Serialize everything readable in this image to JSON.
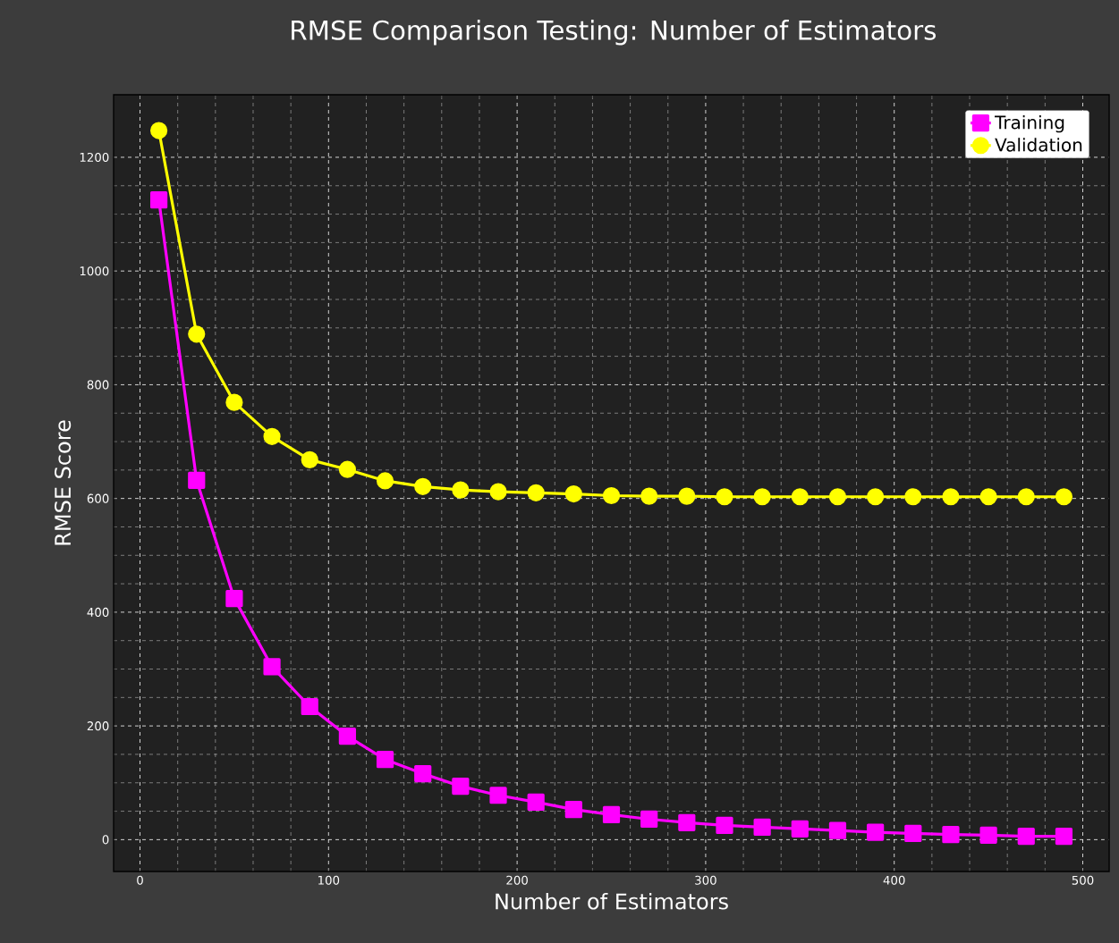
{
  "chart_data": {
    "type": "line",
    "title": "RMSE Comparison Testing: Number of Estimators",
    "xlabel": "Number of Estimators",
    "ylabel": "RMSE Score",
    "x": [
      10,
      30,
      50,
      70,
      90,
      110,
      130,
      150,
      170,
      190,
      210,
      230,
      250,
      270,
      290,
      310,
      330,
      350,
      370,
      390,
      410,
      430,
      450,
      470,
      490
    ],
    "series": [
      {
        "name": "Training",
        "color": "#ff00ff",
        "marker": "square",
        "values": [
          1125,
          632,
          424,
          304,
          234,
          182,
          141,
          116,
          94,
          78,
          66,
          53,
          44,
          36,
          30,
          25,
          22,
          19,
          16,
          13,
          11,
          9,
          8,
          6,
          6
        ]
      },
      {
        "name": "Validation",
        "color": "#ffff00",
        "marker": "circle",
        "values": [
          1247,
          889,
          769,
          709,
          668,
          651,
          631,
          621,
          615,
          612,
          610,
          608,
          605,
          604,
          604,
          603,
          603,
          603,
          603,
          603,
          603,
          603,
          603,
          603,
          603
        ]
      }
    ],
    "xlim": [
      -14,
      514
    ],
    "ylim": [
      -56,
      1310
    ],
    "xticks": [
      0,
      100,
      200,
      300,
      400,
      500
    ],
    "yticks": [
      0,
      200,
      400,
      600,
      800,
      1000,
      1200
    ],
    "grid": true,
    "legend": "top right",
    "line_style": "solid"
  }
}
